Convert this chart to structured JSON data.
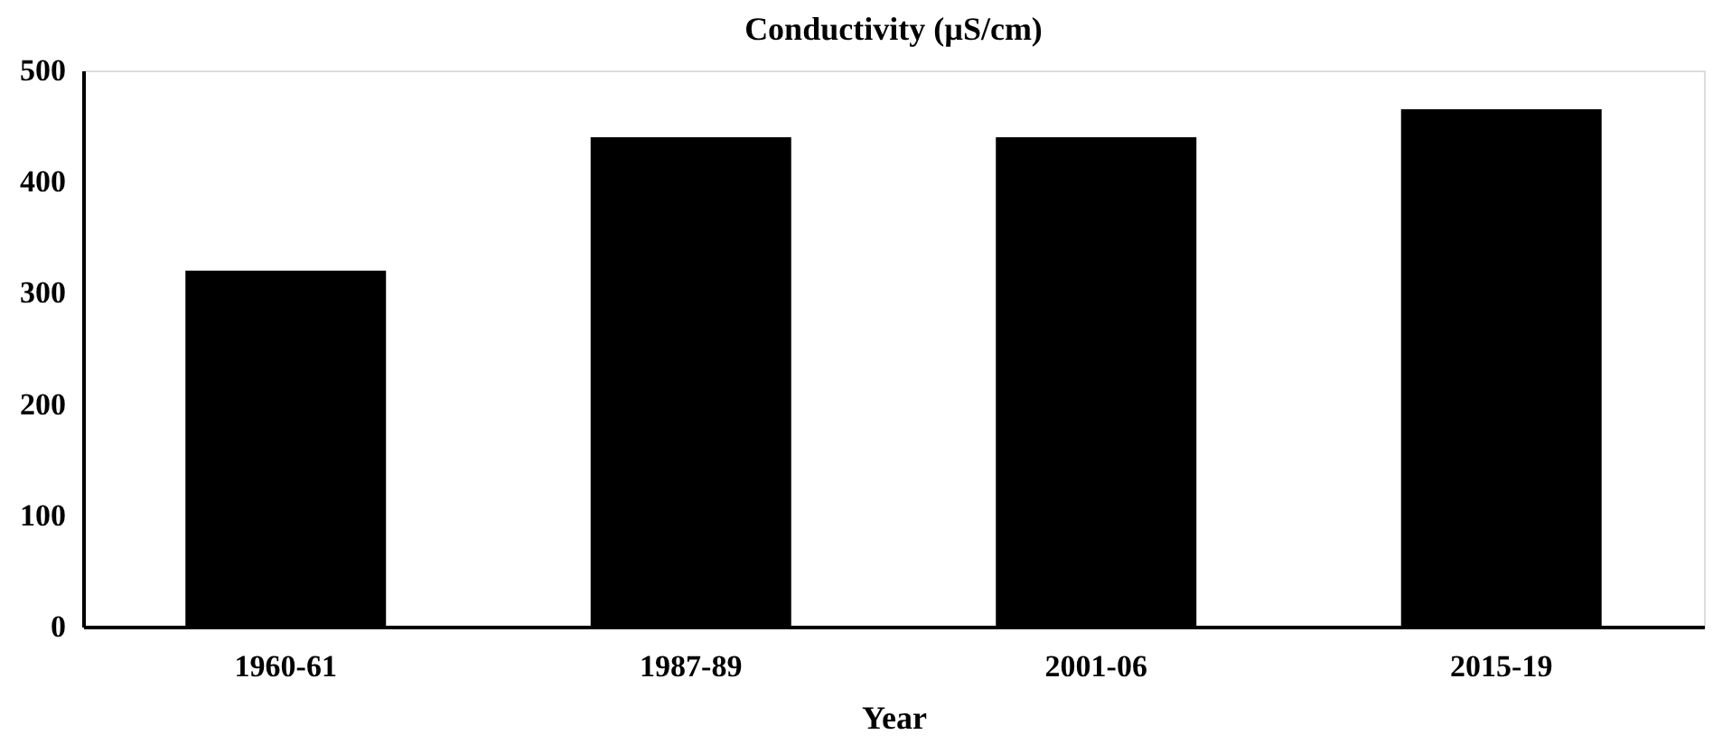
{
  "chart_data": {
    "type": "bar",
    "title": "Conductivity (µS/cm)",
    "xlabel": "Year",
    "categories": [
      "1960-61",
      "1987-89",
      "2001-06",
      "2015-19"
    ],
    "values": [
      320,
      440,
      440,
      465
    ],
    "color": "#000000",
    "ylim": [
      0,
      500
    ],
    "yticks": [
      0,
      100,
      200,
      300,
      400,
      500
    ],
    "grid": false
  }
}
